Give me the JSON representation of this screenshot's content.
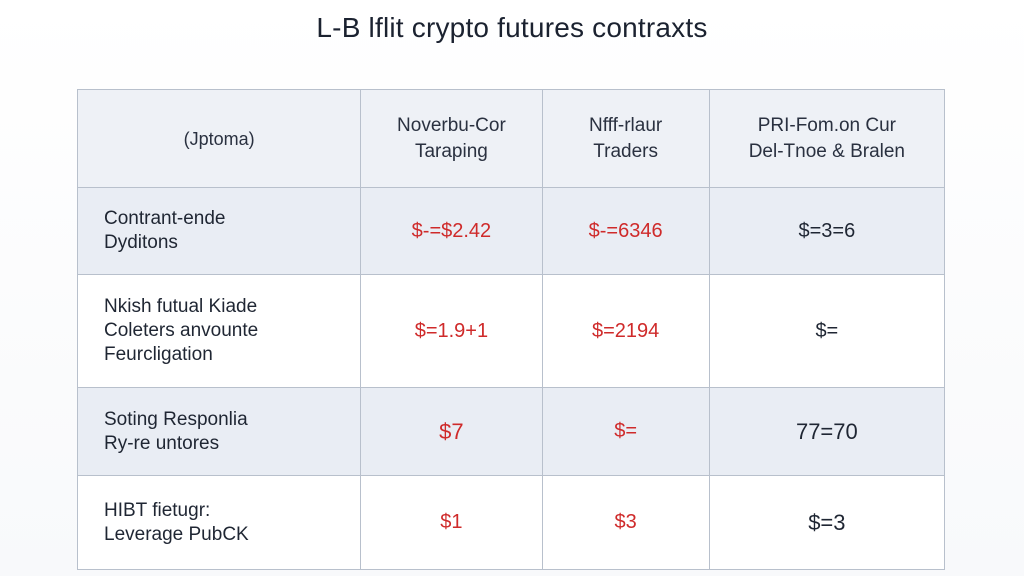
{
  "title": "L-B lflit crypto futures contraxts",
  "colors": {
    "red_value": "#cf2a2a",
    "dark_value": "#1f2633",
    "grid_line": "#b8c0cc",
    "shaded_row": "#e9edf4"
  },
  "table": {
    "headers": [
      {
        "lines": [
          "(Jptoma)"
        ]
      },
      {
        "lines": [
          "Noverbu-Cor",
          "Taraping"
        ]
      },
      {
        "lines": [
          "Nfff-rlaur",
          "Traders"
        ]
      },
      {
        "lines": [
          "PRI-Fom.on Cur",
          "Del-Tnoe & Bralen"
        ]
      }
    ],
    "rows": [
      {
        "label": [
          "Contrant-ende",
          "Dyditons"
        ],
        "values": [
          "$-=$2.42",
          "$-=6346",
          "$=3=6"
        ]
      },
      {
        "label": [
          "Nkish futual Kiade",
          "Coleters anvounte",
          "Feurcligation"
        ],
        "values": [
          "$=1.9+1",
          "$=2194",
          "$="
        ]
      },
      {
        "label": [
          "Soting Responlia",
          "Ry-re untores"
        ],
        "values": [
          "$7",
          "$=",
          "77=70"
        ]
      },
      {
        "label": [
          "HIBT fietugr:",
          "Leverage PubCK"
        ],
        "values": [
          "$1",
          "$3",
          "$=3"
        ]
      }
    ]
  }
}
